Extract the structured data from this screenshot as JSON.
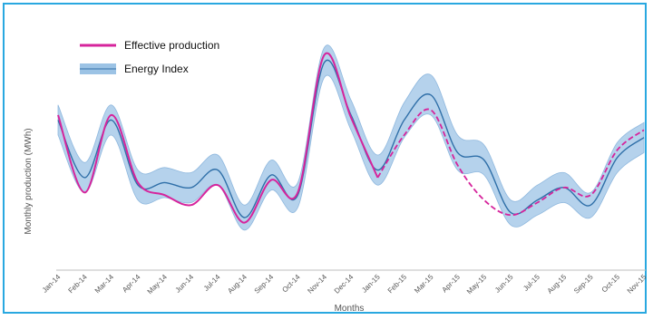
{
  "colors": {
    "frame": "#29a8e0",
    "production": "#d6249c",
    "index_line": "#2f6fa8",
    "index_band": "#9cc3e5",
    "axis": "#bfbfbf"
  },
  "chart_data": {
    "type": "line",
    "title": "",
    "xlabel": "Months",
    "ylabel": "Monthly production (MWh)",
    "grid": false,
    "legend_position": "top-left",
    "x": [
      "Jan-14",
      "Feb-14",
      "Mar-14",
      "Apr-14",
      "May-14",
      "Jun-14",
      "Jul-14",
      "Aug-14",
      "Sep-14",
      "Oct-14",
      "Nov-14",
      "Dec-14",
      "Jan-15",
      "Feb-15",
      "Mar-15",
      "Apr-15",
      "May-15",
      "Jun-15",
      "Jul-15",
      "Aug-15",
      "Sep-15",
      "Oct-15",
      "Nov-15"
    ],
    "ylim": [
      0,
      100
    ],
    "series": [
      {
        "name": "Effective production",
        "style": "solid-then-dashed",
        "values": [
          62,
          31,
          62,
          35,
          30,
          26,
          34,
          19,
          36,
          31,
          86,
          61,
          37,
          54,
          64,
          42,
          28,
          22,
          27,
          33,
          30,
          48,
          56
        ]
      },
      {
        "name": "Energy Index",
        "style": "line-with-band",
        "values": [
          60,
          37,
          60,
          34,
          35,
          33,
          40,
          21,
          38,
          30,
          83,
          62,
          40,
          60,
          70,
          47,
          44,
          23,
          28,
          33,
          26,
          45,
          53
        ],
        "band_lower": [
          54,
          31,
          54,
          28,
          29,
          27,
          34,
          16,
          32,
          25,
          77,
          56,
          34,
          53,
          62,
          40,
          38,
          18,
          22,
          27,
          21,
          39,
          47
        ],
        "band_upper": [
          66,
          43,
          66,
          40,
          41,
          39,
          46,
          26,
          44,
          35,
          89,
          68,
          46,
          67,
          78,
          54,
          50,
          28,
          34,
          39,
          31,
          51,
          59
        ]
      }
    ],
    "dashed_from_index": 12
  }
}
